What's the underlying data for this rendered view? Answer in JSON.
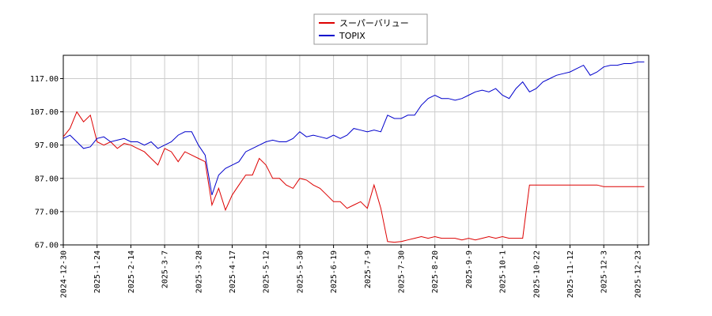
{
  "chart_data": {
    "type": "line",
    "categories": [
      "2024-12-30",
      null,
      null,
      null,
      null,
      "2025-1-24",
      null,
      null,
      null,
      null,
      "2025-2-14",
      null,
      null,
      null,
      null,
      "2025-3-7",
      null,
      null,
      null,
      null,
      "2025-3-28",
      null,
      null,
      null,
      null,
      "2025-4-17",
      null,
      null,
      null,
      null,
      "2025-5-12",
      null,
      null,
      null,
      null,
      "2025-5-30",
      null,
      null,
      null,
      null,
      "2025-6-19",
      null,
      null,
      null,
      null,
      "2025-7-9",
      null,
      null,
      null,
      null,
      "2025-7-30",
      null,
      null,
      null,
      null,
      "2025-8-20",
      null,
      null,
      null,
      null,
      "2025-9-9",
      null,
      null,
      null,
      null,
      "2025-10-1",
      null,
      null,
      null,
      null,
      "2025-10-22",
      null,
      null,
      null,
      null,
      "2025-11-12",
      null,
      null,
      null,
      null,
      "2025-12-3",
      null,
      null,
      null,
      null,
      "2025-12-23",
      null
    ],
    "series": [
      {
        "name": "スーパーバリュー",
        "color": "#dd0000",
        "values": [
          99.5,
          102,
          107,
          104,
          106,
          98,
          97,
          98,
          96,
          97.5,
          97,
          96,
          95,
          93,
          91,
          96,
          95,
          92,
          95,
          94,
          93,
          92,
          79,
          84,
          77.5,
          82,
          85,
          88,
          88,
          93,
          91,
          87,
          87,
          85,
          84,
          87,
          86.5,
          85,
          84,
          82,
          80,
          80,
          78,
          79,
          80,
          78,
          85,
          78,
          68,
          67.8,
          68,
          68.5,
          69,
          69.5,
          69,
          69.5,
          69,
          69,
          69,
          68.5,
          69,
          68.5,
          69,
          69.5,
          69,
          69.5,
          69,
          69,
          69,
          85,
          85,
          85,
          85,
          85,
          85,
          85,
          85,
          85,
          85,
          85,
          84.5,
          84.5,
          84.5,
          84.5,
          84.5,
          84.5,
          84.5
        ]
      },
      {
        "name": "TOPIX",
        "color": "#0000cc",
        "values": [
          99,
          100,
          98,
          96,
          96.5,
          99,
          99.5,
          98,
          98.5,
          99,
          98,
          98,
          97,
          98,
          96,
          97,
          98,
          100,
          101,
          101,
          97,
          94,
          82,
          88,
          90,
          91,
          92,
          95,
          96,
          97,
          98,
          98.5,
          98,
          98,
          99,
          101,
          99.5,
          100,
          99.5,
          99,
          100,
          99,
          100,
          102,
          101.5,
          101,
          101.5,
          101,
          106,
          105,
          105,
          106,
          106,
          109,
          111,
          112,
          111,
          111,
          110.5,
          111,
          112,
          113,
          113.5,
          113,
          114,
          112,
          111,
          114,
          116,
          113,
          114,
          116,
          117,
          118,
          118.5,
          119,
          120,
          121,
          118,
          119,
          120.5,
          121,
          121,
          121.5,
          121.5,
          122,
          122
        ]
      }
    ],
    "ylim": [
      67,
      124
    ],
    "yticks": [
      {
        "value": 67,
        "label": "67.00"
      },
      {
        "value": 77,
        "label": "77.00"
      },
      {
        "value": 87,
        "label": "87.00"
      },
      {
        "value": 97,
        "label": "97.00"
      },
      {
        "value": 107,
        "label": "107.00"
      },
      {
        "value": 117,
        "label": "117.00"
      }
    ],
    "grid": true,
    "legend": "top"
  }
}
